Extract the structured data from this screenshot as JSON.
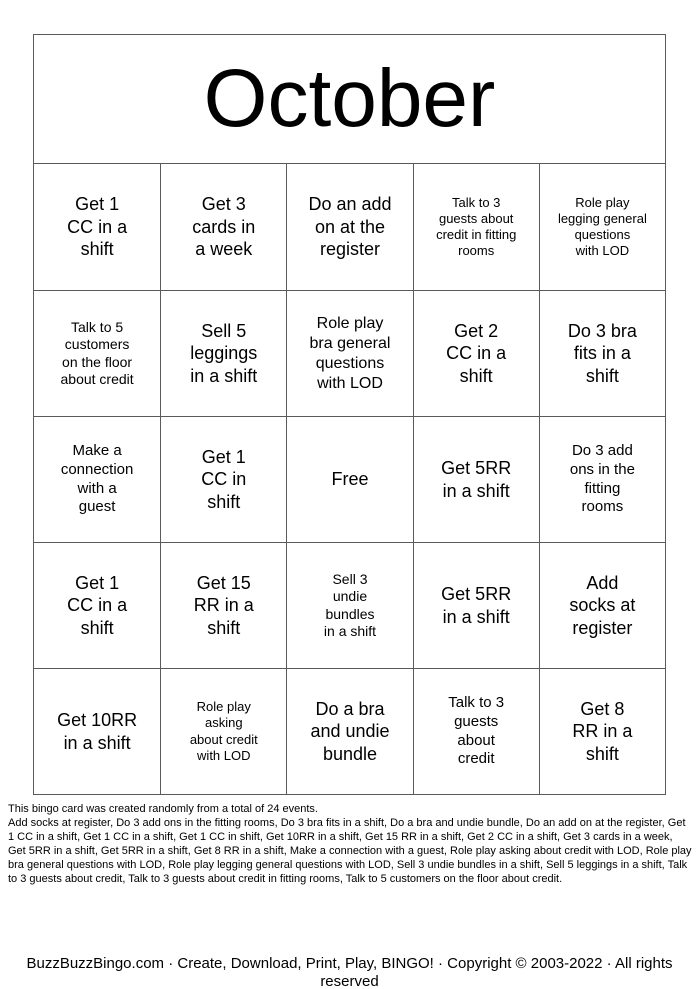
{
  "title": "October",
  "card": {
    "rows": [
      [
        "Get 1\nCC in a\nshift",
        "Get 3\ncards in\na week",
        "Do an add\non at the\nregister",
        "Talk to 3\nguests about\ncredit in fitting\nrooms",
        "Role play\nlegging general\nquestions\nwith LOD"
      ],
      [
        "Talk to 5\ncustomers\non the floor\nabout credit",
        "Sell 5\nleggings\nin a shift",
        "Role play\nbra general\nquestions\nwith LOD",
        "Get 2\nCC in a\nshift",
        "Do 3 bra\nfits in a\nshift"
      ],
      [
        "Make a\nconnection\nwith a\nguest",
        "Get 1\nCC in\nshift",
        "Free",
        "Get 5RR\nin a shift",
        "Do 3 add\nons in the\nfitting\nrooms"
      ],
      [
        "Get 1\nCC in a\nshift",
        "Get 15\nRR in a\nshift",
        "Sell 3\nundie\nbundles\nin a shift",
        "Get 5RR\nin a shift",
        "Add\nsocks at\nregister"
      ],
      [
        "Get 10RR\nin a shift",
        "Role play\nasking\nabout credit\nwith LOD",
        "Do a bra\nand undie\nbundle",
        "Talk to 3\nguests\nabout\ncredit",
        "Get 8\nRR in a\nshift"
      ]
    ]
  },
  "fine_print": {
    "intro": "This bingo card was created randomly from a total of 24 events.",
    "events": "Add socks at register, Do 3 add ons in the fitting rooms, Do 3 bra fits in a shift, Do a bra and undie bundle, Do an add on at the register, Get 1 CC in a shift, Get 1 CC in a shift, Get 1 CC in shift, Get 10RR in a shift, Get 15 RR in a shift, Get 2 CC in a shift, Get 3 cards in a week, Get 5RR in a shift, Get 5RR in a shift, Get 8 RR in a shift, Make a connection with a guest, Role play asking about credit with LOD, Role play bra general questions with LOD, Role play legging general questions with LOD, Sell 3 undie bundles in a shift, Sell 5 leggings in a shift, Talk to 3 guests about credit, Talk to 3 guests about credit in fitting rooms, Talk to 5 customers on the floor about credit."
  },
  "footer": {
    "text": "BuzzBuzzBingo.com · Create, Download, Print, Play, BINGO! · Copyright © 2003-2022 · All rights reserved"
  },
  "colors": {
    "background": "#ffffff",
    "text": "#000000",
    "border": "#5a5a5a"
  }
}
